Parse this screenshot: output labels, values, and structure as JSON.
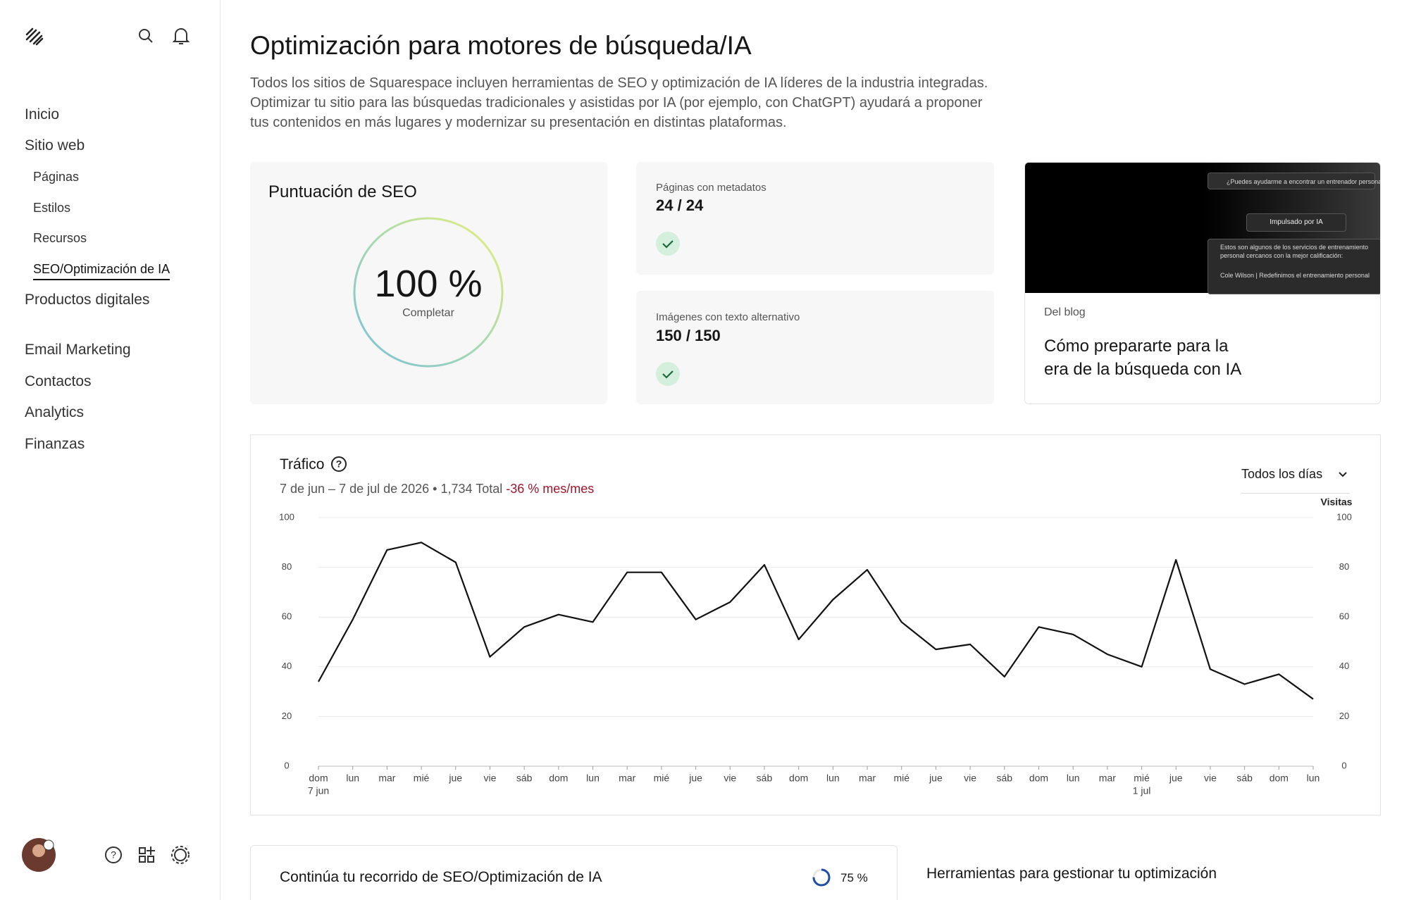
{
  "sidebar": {
    "nav": [
      "Inicio",
      "Sitio web",
      "Productos digitales",
      "Email Marketing",
      "Contactos",
      "Analytics",
      "Finanzas"
    ],
    "subnav": [
      "Páginas",
      "Estilos",
      "Recursos",
      "SEO/Optimización de IA"
    ]
  },
  "header": {
    "title": "Optimización para motores de búsqueda/IA",
    "description": [
      "Todos los sitios de Squarespace incluyen herramientas de SEO y optimización de IA líderes de la industria integradas.",
      "Optimizar tu sitio para las búsquedas tradicionales y asistidas por IA (por ejemplo, con ChatGPT) ayudará a proponer",
      "tus contenidos en más lugares y modernizar su presentación en distintas plataformas."
    ]
  },
  "seo_card": {
    "title": "Puntuación de SEO",
    "score": "100 %",
    "status": "Completar"
  },
  "metadata_card": {
    "label": "Páginas con metadatos",
    "value": "24 / 24"
  },
  "alt_text_card": {
    "label": "Imágenes con texto alternativo",
    "value": "150 / 150"
  },
  "blog_card": {
    "image_texts": [
      "¿Puedes ayudarme a encontrar un entrenador personal?",
      "Impulsado por IA",
      "Estos son algunos de los servicios de entrenamiento",
      "personal cercanos con la mejor calificación:",
      "Cole Wilson | Redefinimos el entrenamiento personal"
    ],
    "kicker": "Del blog",
    "title": [
      "Cómo prepararte para la",
      "era de la búsqueda con IA"
    ]
  },
  "chart_data": {
    "type": "line",
    "title": "Tráfico",
    "subtitle": "7 de jun – 7 de jul de 2026 • 1,734 Total",
    "change": "-36 % mes/mes",
    "filter": "Todos los días",
    "y2_label": "Visitas",
    "categories": [
      "dom",
      "lun",
      "mar",
      "mié",
      "jue",
      "vie",
      "sáb",
      "dom",
      "lun",
      "mar",
      "mié",
      "jue",
      "vie",
      "sáb",
      "dom",
      "lun",
      "mar",
      "mié",
      "jue",
      "vie",
      "sáb",
      "dom",
      "lun",
      "mar",
      "mié",
      "jue",
      "vie",
      "sáb",
      "dom",
      "lun"
    ],
    "x_sublabels": [
      "7 jun",
      null,
      null,
      null,
      null,
      null,
      null,
      null,
      null,
      null,
      null,
      null,
      null,
      null,
      null,
      null,
      null,
      null,
      null,
      null,
      null,
      null,
      null,
      null,
      "1 jul",
      null,
      null,
      null,
      null,
      null
    ],
    "values": [
      34,
      59,
      87,
      90,
      82,
      44,
      56,
      61,
      58,
      78,
      78,
      59,
      66,
      81,
      51,
      67,
      79,
      58,
      47,
      49,
      36,
      56,
      53,
      45,
      40,
      83,
      39,
      33,
      37,
      27
    ],
    "color": "#111111",
    "ylim": [
      0,
      100
    ],
    "yticks": [
      0,
      20,
      40,
      60,
      80,
      100
    ],
    "y2lim": [
      0,
      100
    ],
    "y2ticks": [
      0,
      20,
      40,
      60,
      80,
      100
    ],
    "grid": true
  },
  "journey_card": {
    "title": "Continúa tu recorrido de SEO/Optimización de IA",
    "progress": {
      "value": 75,
      "label": "75 %"
    }
  },
  "tools_card": {
    "title": "Herramientas para gestionar tu optimización"
  }
}
